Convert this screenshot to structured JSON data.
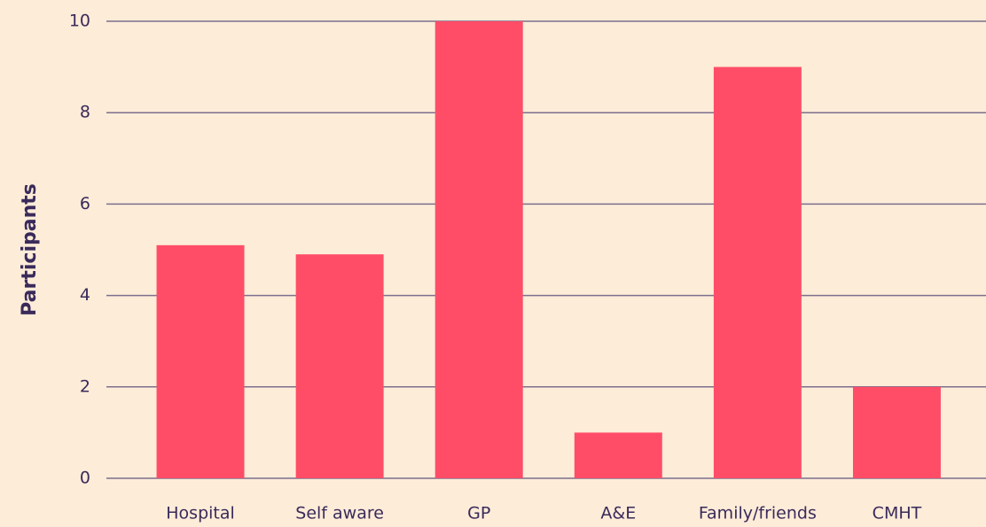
{
  "chart_data": {
    "type": "bar",
    "y_label": "Participants",
    "categories": [
      "Hospital",
      "Self aware",
      "GP",
      "A&E",
      "Family/friends",
      "CMHT"
    ],
    "values": [
      5.1,
      4.9,
      10,
      1,
      9,
      2
    ],
    "color": "#ff4d68",
    "ylim": [
      0,
      10
    ],
    "yticks": [
      0,
      2,
      4,
      6,
      8,
      10
    ],
    "grid": true
  }
}
